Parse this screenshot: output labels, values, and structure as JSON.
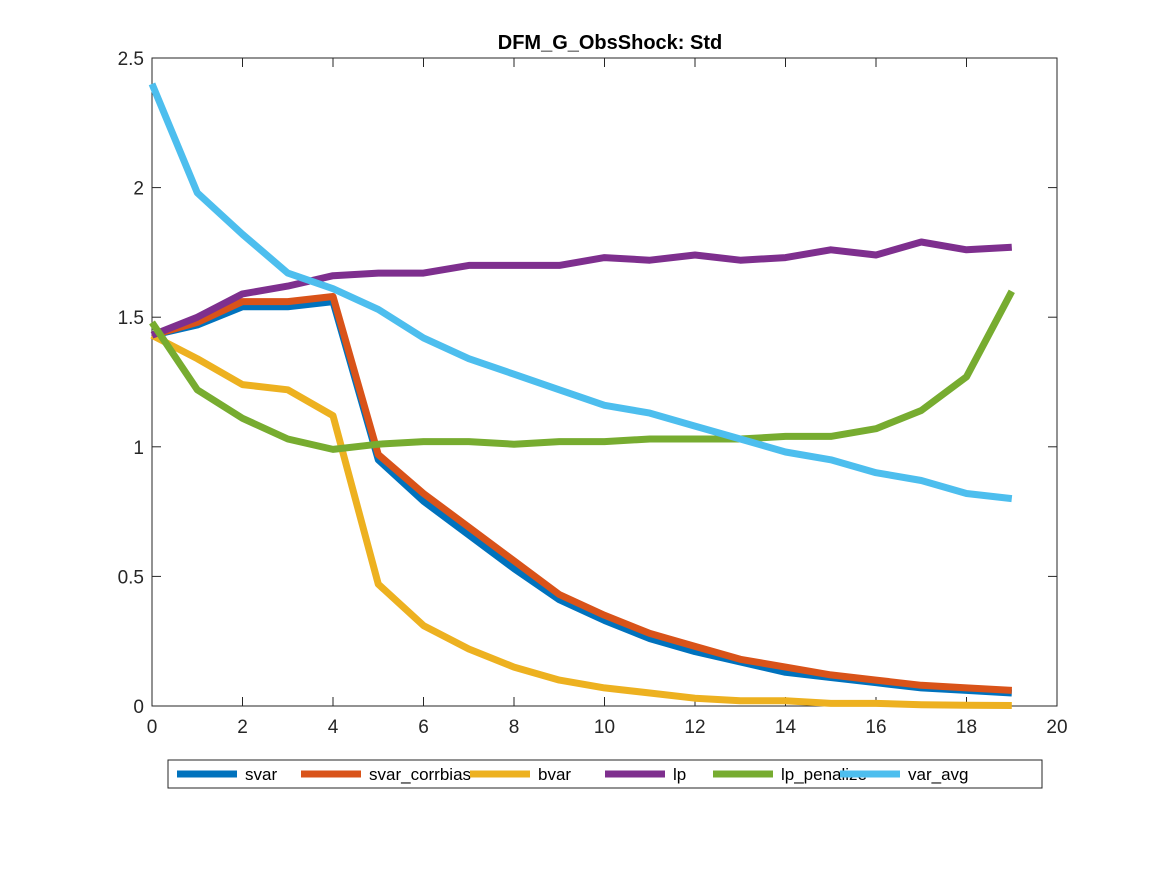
{
  "chart_data": {
    "type": "line",
    "title": "DFM_G_ObsShock: Std",
    "xlabel": "",
    "ylabel": "",
    "xlim": [
      0,
      20
    ],
    "ylim": [
      0,
      2.5
    ],
    "x_ticks": [
      0,
      2,
      4,
      6,
      8,
      10,
      12,
      14,
      16,
      18,
      20
    ],
    "y_ticks": [
      0,
      0.5,
      1,
      1.5,
      2,
      2.5
    ],
    "x_tick_labels": [
      "0",
      "2",
      "4",
      "6",
      "8",
      "10",
      "12",
      "14",
      "16",
      "18",
      "20"
    ],
    "y_tick_labels": [
      "0",
      "0.5",
      "1",
      "1.5",
      "2",
      "2.5"
    ],
    "grid": false,
    "legend_position": "bottom-outside",
    "x": [
      0,
      1,
      2,
      3,
      4,
      5,
      6,
      7,
      8,
      9,
      10,
      11,
      12,
      13,
      14,
      15,
      16,
      17,
      18,
      19
    ],
    "series": [
      {
        "name": "svar",
        "color": "#0072BD",
        "values": [
          1.43,
          1.47,
          1.54,
          1.54,
          1.56,
          0.95,
          0.79,
          0.66,
          0.53,
          0.41,
          0.33,
          0.26,
          0.21,
          0.17,
          0.13,
          0.11,
          0.09,
          0.07,
          0.06,
          0.05
        ]
      },
      {
        "name": "svar_corrbias",
        "color": "#D95319",
        "values": [
          1.43,
          1.48,
          1.56,
          1.56,
          1.58,
          0.97,
          0.82,
          0.69,
          0.56,
          0.43,
          0.35,
          0.28,
          0.23,
          0.18,
          0.15,
          0.12,
          0.1,
          0.08,
          0.07,
          0.06
        ]
      },
      {
        "name": "bvar",
        "color": "#EDB120",
        "values": [
          1.43,
          1.34,
          1.24,
          1.22,
          1.12,
          0.47,
          0.31,
          0.22,
          0.15,
          0.1,
          0.07,
          0.05,
          0.03,
          0.02,
          0.02,
          0.01,
          0.01,
          0.005,
          0.003,
          0.002
        ]
      },
      {
        "name": "lp",
        "color": "#7E2F8E",
        "values": [
          1.43,
          1.5,
          1.59,
          1.62,
          1.66,
          1.67,
          1.67,
          1.7,
          1.7,
          1.7,
          1.73,
          1.72,
          1.74,
          1.72,
          1.73,
          1.76,
          1.74,
          1.79,
          1.76,
          1.77
        ]
      },
      {
        "name": "lp_penalize",
        "color": "#77AC30",
        "values": [
          1.48,
          1.22,
          1.11,
          1.03,
          0.99,
          1.01,
          1.02,
          1.02,
          1.01,
          1.02,
          1.02,
          1.03,
          1.03,
          1.03,
          1.04,
          1.04,
          1.07,
          1.14,
          1.27,
          1.6
        ]
      },
      {
        "name": "var_avg",
        "color": "#4DBEEE",
        "values": [
          2.4,
          1.98,
          1.82,
          1.67,
          1.61,
          1.53,
          1.42,
          1.34,
          1.28,
          1.22,
          1.16,
          1.13,
          1.08,
          1.03,
          0.98,
          0.95,
          0.9,
          0.87,
          0.82,
          0.8
        ]
      }
    ]
  }
}
